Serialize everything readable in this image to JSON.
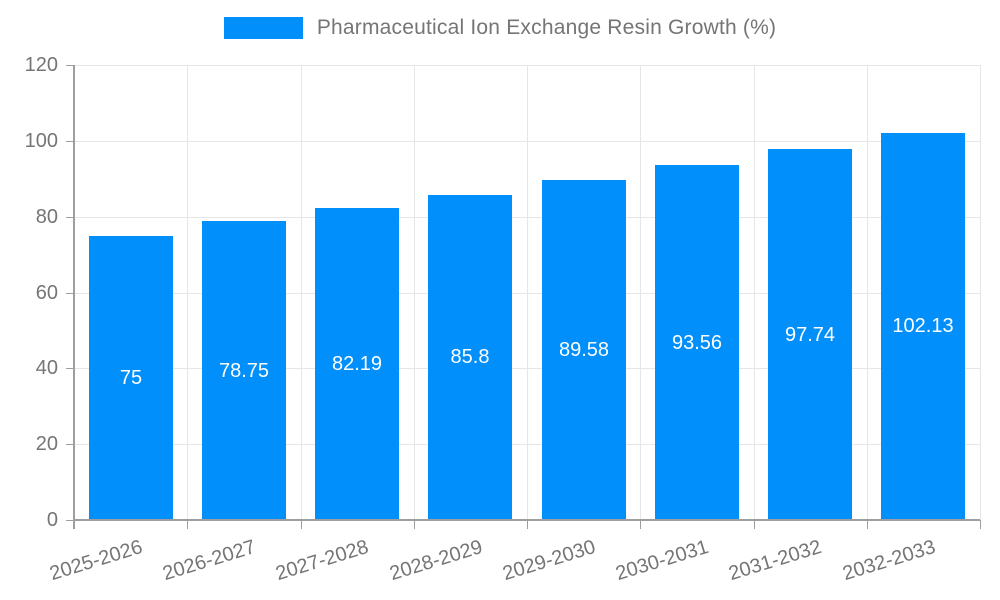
{
  "legend": {
    "label": "Pharmaceutical Ion Exchange Resin Growth (%)"
  },
  "chart_data": {
    "type": "bar",
    "title": "Pharmaceutical Ion Exchange Resin Growth (%)",
    "categories": [
      "2025-2026",
      "2026-2027",
      "2027-2028",
      "2028-2029",
      "2029-2030",
      "2030-2031",
      "2031-2032",
      "2032-2033"
    ],
    "values": [
      75,
      78.75,
      82.19,
      85.8,
      89.58,
      93.56,
      97.74,
      102.13
    ],
    "value_labels": [
      "75",
      "78.75",
      "82.19",
      "85.8",
      "89.58",
      "93.56",
      "97.74",
      "102.13"
    ],
    "y_tick_labels": [
      "0",
      "20",
      "40",
      "60",
      "80",
      "100",
      "120"
    ],
    "xlabel": "",
    "ylabel": "",
    "ylim": [
      0,
      120
    ],
    "ytick_step": 20,
    "grid": true,
    "legend_position": "top",
    "x_label_rotation_deg": -17,
    "colors": {
      "bar": "#008FFB",
      "bar_value_label": "#ffffff",
      "axis": "#9e9e9e",
      "grid": "#e6e6e6",
      "tick_label": "#757575",
      "legend_label": "#757575"
    }
  }
}
